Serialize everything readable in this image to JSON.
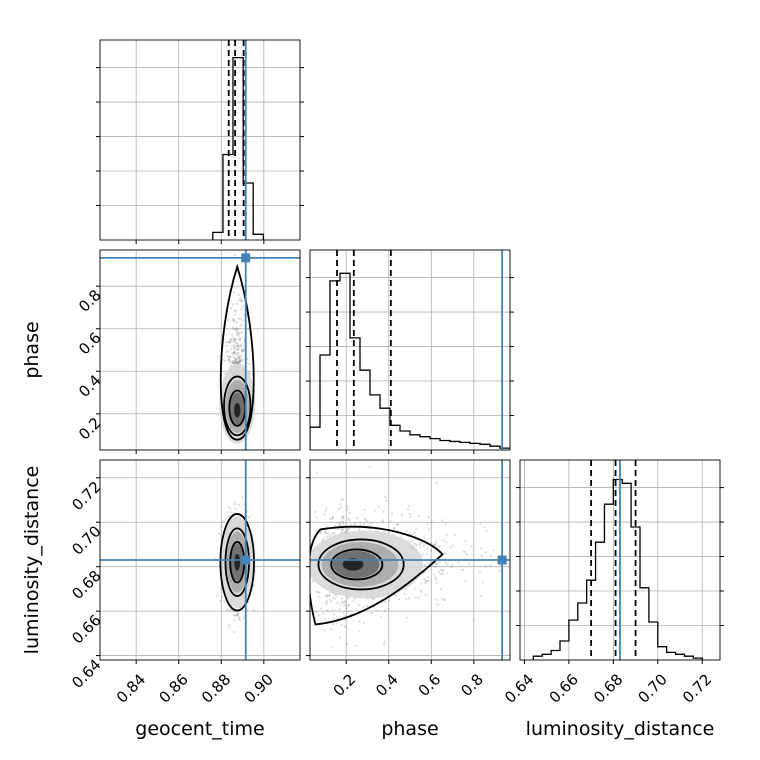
{
  "chart_data": {
    "type": "corner",
    "parameters": [
      "geocent_time",
      "phase",
      "luminosity_distance"
    ],
    "axis_labels": {
      "geocent_time": "geocent_time",
      "phase": "phase",
      "luminosity_distance": "luminosity_distance"
    },
    "ranges": {
      "geocent_time": [
        0.823,
        0.917
      ],
      "phase": [
        0.03,
        0.97
      ],
      "luminosity_distance": [
        0.638,
        0.728
      ]
    },
    "ticks": {
      "geocent_time": [
        "0.84",
        "0.86",
        "0.88",
        "0.90"
      ],
      "phase": [
        "0.2",
        "0.4",
        "0.6",
        "0.8"
      ],
      "luminosity_distance": [
        "0.64",
        "0.66",
        "0.68",
        "0.70",
        "0.72"
      ]
    },
    "truths": {
      "geocent_time": 0.8915,
      "phase": 0.933,
      "luminosity_distance": 0.683
    },
    "quantiles": {
      "geocent_time": [
        0.8835,
        0.8865,
        0.8905
      ],
      "phase": [
        0.157,
        0.236,
        0.41
      ],
      "luminosity_distance": [
        0.67,
        0.681,
        0.69
      ]
    },
    "marginals": {
      "geocent_time": {
        "edges": [
          0.876,
          0.8808,
          0.8855,
          0.8903,
          0.895,
          0.8998
        ],
        "counts": [
          0.04,
          0.45,
          0.96,
          0.3,
          0.03
        ]
      },
      "phase": {
        "edges": [
          0.03,
          0.077,
          0.124,
          0.171,
          0.218,
          0.265,
          0.312,
          0.359,
          0.406,
          0.453,
          0.5,
          0.547,
          0.594,
          0.641,
          0.688,
          0.735,
          0.782,
          0.829,
          0.876,
          0.923,
          0.97
        ],
        "counts": [
          0.12,
          0.5,
          0.89,
          0.93,
          0.59,
          0.42,
          0.29,
          0.22,
          0.13,
          0.1,
          0.08,
          0.07,
          0.06,
          0.05,
          0.045,
          0.04,
          0.035,
          0.03,
          0.02,
          0.01
        ]
      },
      "luminosity_distance": {
        "edges": [
          0.644,
          0.648,
          0.652,
          0.656,
          0.66,
          0.664,
          0.668,
          0.672,
          0.676,
          0.68,
          0.684,
          0.688,
          0.692,
          0.696,
          0.7,
          0.704,
          0.708,
          0.712,
          0.716,
          0.72
        ],
        "counts": [
          0.02,
          0.03,
          0.05,
          0.1,
          0.21,
          0.3,
          0.42,
          0.62,
          0.82,
          0.95,
          0.93,
          0.7,
          0.38,
          0.2,
          0.07,
          0.04,
          0.03,
          0.02,
          0.01
        ]
      }
    },
    "joint_distributions": [
      {
        "x": "geocent_time",
        "y": "phase",
        "center": [
          0.8875,
          0.21
        ],
        "spread": [
          0.0025,
          0.14
        ]
      },
      {
        "x": "geocent_time",
        "y": "luminosity_distance",
        "center": [
          0.8875,
          0.682
        ],
        "spread": [
          0.0028,
          0.01
        ]
      },
      {
        "x": "phase",
        "y": "luminosity_distance",
        "center": [
          0.22,
          0.681
        ],
        "spread": [
          0.16,
          0.012
        ]
      }
    ]
  }
}
